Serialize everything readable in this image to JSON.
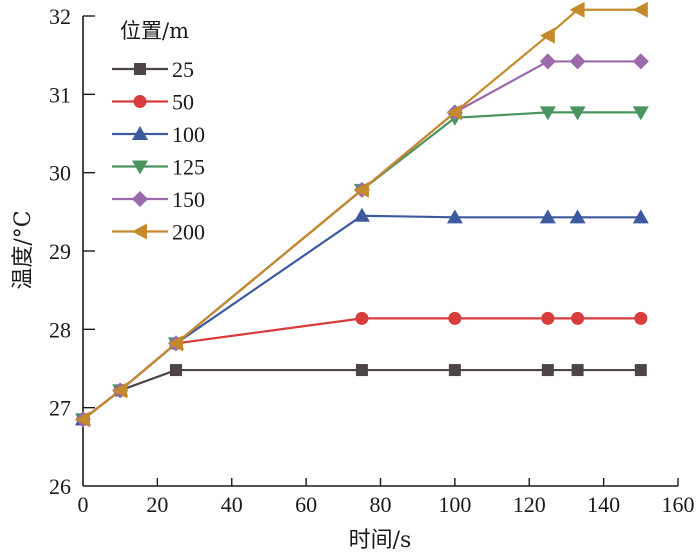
{
  "chart_data": {
    "type": "line",
    "title": "",
    "xlabel": "时间/s",
    "ylabel": "温度/°C",
    "xlim": [
      0,
      160
    ],
    "ylim": [
      26,
      32
    ],
    "xticks": [
      0,
      20,
      40,
      60,
      80,
      100,
      120,
      140,
      160
    ],
    "yticks": [
      26,
      27,
      28,
      29,
      30,
      31,
      32
    ],
    "grid": false,
    "legend": {
      "title": "位置/m",
      "placement": "top-left"
    },
    "x": [
      0,
      10,
      25,
      75,
      100,
      125,
      133,
      150
    ],
    "series": [
      {
        "name": "25",
        "color": "#4d4545",
        "marker": "square",
        "values": [
          26.85,
          27.22,
          27.48,
          27.48,
          27.48,
          27.48,
          27.48,
          27.48
        ]
      },
      {
        "name": "50",
        "color": "#d93c3c",
        "marker": "circle",
        "values": [
          26.85,
          27.22,
          27.82,
          28.14,
          28.14,
          28.14,
          28.14,
          28.14
        ]
      },
      {
        "name": "100",
        "color": "#3e5a9e",
        "marker": "triangle-up",
        "values": [
          26.85,
          27.22,
          27.82,
          29.45,
          29.43,
          29.43,
          29.43,
          29.43
        ]
      },
      {
        "name": "125",
        "color": "#4a9460",
        "marker": "triangle-down",
        "values": [
          26.85,
          27.22,
          27.82,
          29.78,
          30.7,
          30.77,
          30.77,
          30.77
        ]
      },
      {
        "name": "150",
        "color": "#9a6aaa",
        "marker": "diamond",
        "values": [
          26.85,
          27.22,
          27.82,
          29.78,
          30.77,
          31.42,
          31.42,
          31.42
        ]
      },
      {
        "name": "200",
        "color": "#c48a2c",
        "marker": "triangle-left",
        "values": [
          26.85,
          27.22,
          27.82,
          29.78,
          30.77,
          31.75,
          32.08,
          32.08
        ]
      }
    ]
  }
}
